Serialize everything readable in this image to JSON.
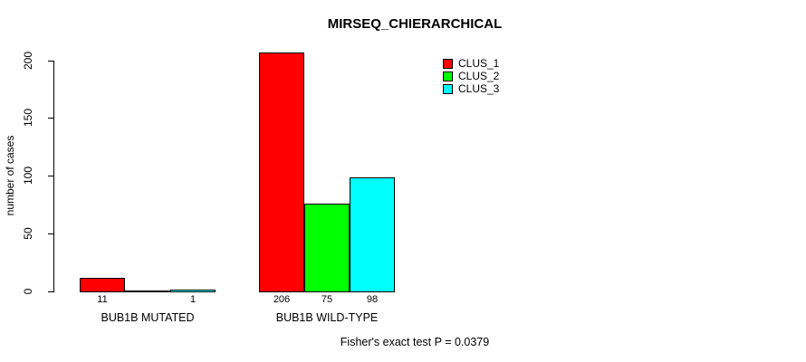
{
  "title": "MIRSEQ_CHIERARCHICAL",
  "footer": "Fisher's exact test P = 0.0379",
  "colors": {
    "clus_1": "#ff0000",
    "clus_2": "#00ff00",
    "clus_3": "#00ffff",
    "axis": "#000000",
    "background": "#ffffff"
  },
  "legend": {
    "position": "top-right",
    "items": [
      {
        "label": "CLUS_1",
        "color": "#ff0000"
      },
      {
        "label": "CLUS_2",
        "color": "#00ff00"
      },
      {
        "label": "CLUS_3",
        "color": "#00ffff"
      }
    ]
  },
  "chart_data": {
    "type": "bar",
    "grouped": true,
    "title": "MIRSEQ_CHIERARCHICAL",
    "xlabel": "",
    "ylabel": "number of cases",
    "categories": [
      "BUB1B MUTATED",
      "BUB1B WILD-TYPE"
    ],
    "series": [
      {
        "name": "CLUS_1",
        "color": "#ff0000",
        "values": [
          11,
          206
        ]
      },
      {
        "name": "CLUS_2",
        "color": "#00ff00",
        "values": [
          0,
          75
        ]
      },
      {
        "name": "CLUS_3",
        "color": "#00ffff",
        "values": [
          1,
          98
        ]
      }
    ],
    "bar_value_labels": [
      [
        "11",
        "",
        "1"
      ],
      [
        "206",
        "75",
        "98"
      ]
    ],
    "yticks": [
      0,
      50,
      100,
      150,
      200
    ],
    "ylim": [
      0,
      200
    ],
    "grid": false,
    "legend_position": "top-right",
    "annotation": "Fisher's exact test P = 0.0379"
  }
}
